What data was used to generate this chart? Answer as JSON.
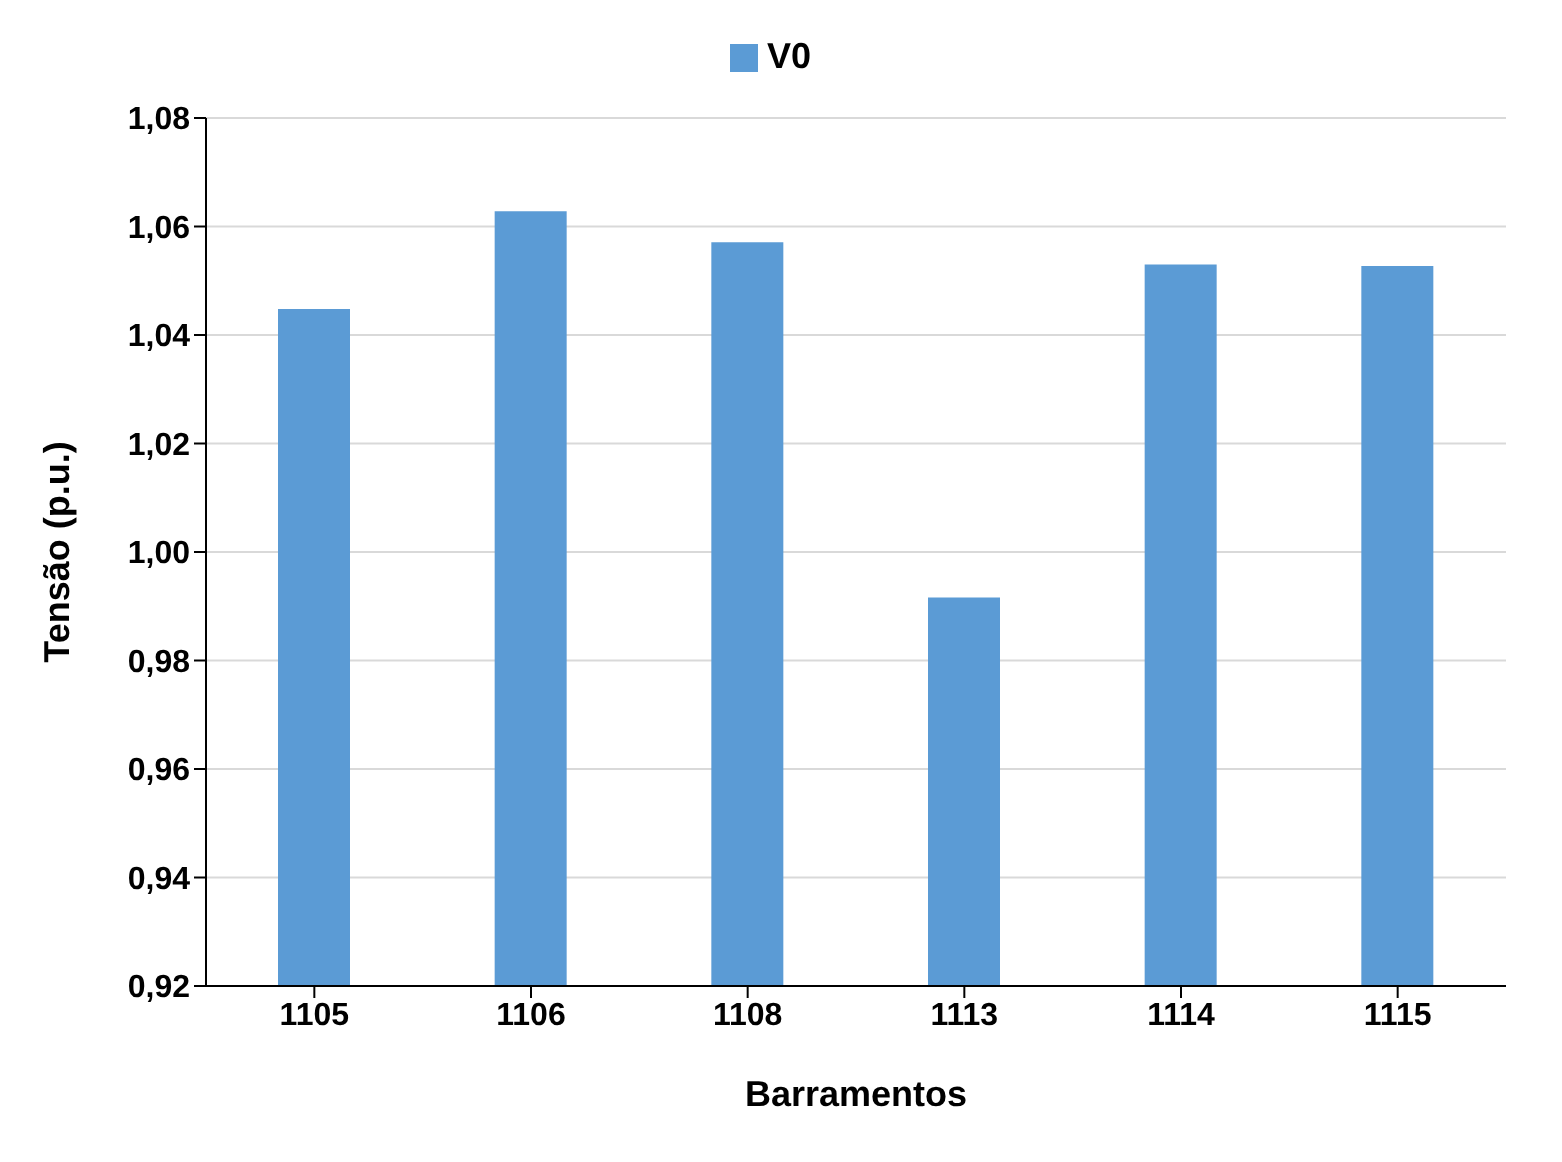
{
  "chart_data": {
    "type": "bar",
    "xlabel": "Barramentos",
    "ylabel": "Tensão (p.u.)",
    "categories": [
      "1105",
      "1106",
      "1108",
      "1113",
      "1114",
      "1115"
    ],
    "series": [
      {
        "name": "V0",
        "color": "#5b9bd5",
        "values": [
          1.0448,
          1.0628,
          1.0571,
          0.9916,
          1.053,
          1.0527
        ]
      }
    ],
    "ylim": [
      0.92,
      1.08
    ],
    "yticks": [
      {
        "value": 0.92,
        "label": "0,92"
      },
      {
        "value": 0.94,
        "label": "0,94"
      },
      {
        "value": 0.96,
        "label": "0,96"
      },
      {
        "value": 0.98,
        "label": "0,98"
      },
      {
        "value": 1.0,
        "label": "1,00"
      },
      {
        "value": 1.02,
        "label": "1,02"
      },
      {
        "value": 1.04,
        "label": "1,04"
      },
      {
        "value": 1.06,
        "label": "1,06"
      },
      {
        "value": 1.08,
        "label": "1,08"
      }
    ],
    "grid": "y",
    "legend": "top"
  }
}
